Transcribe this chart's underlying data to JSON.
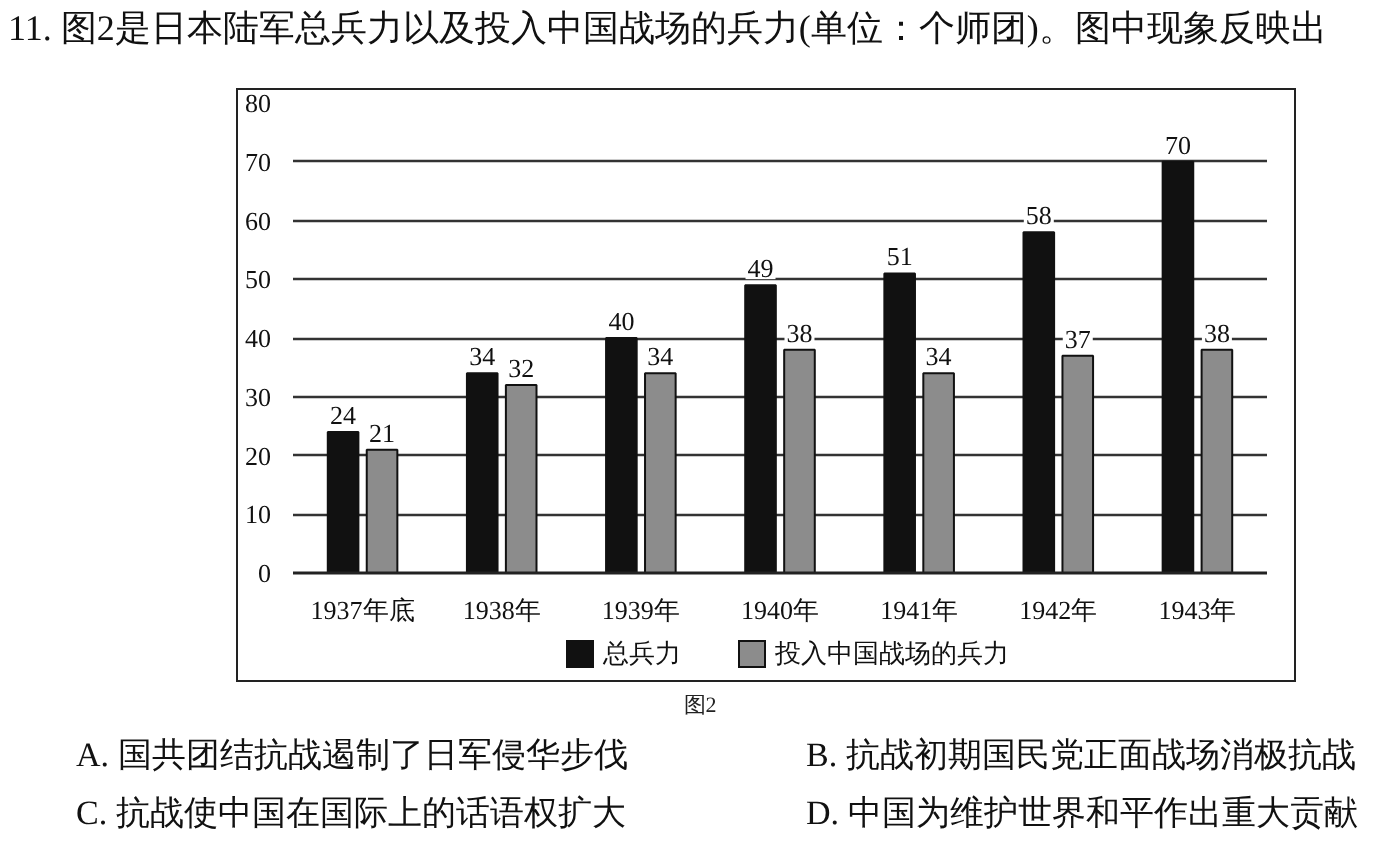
{
  "chart_data": {
    "type": "bar",
    "title": "11. 图2是日本陆军总兵力以及投入中国战场的兵力(单位：个师团)。图中现象反映出",
    "categories": [
      "1937年底",
      "1938年",
      "1939年",
      "1940年",
      "1941年",
      "1942年",
      "1943年"
    ],
    "series": [
      {
        "name": "总兵力",
        "color": "#111111",
        "values": [
          24,
          34,
          40,
          49,
          51,
          58,
          70
        ]
      },
      {
        "name": "投入中国战场的兵力",
        "color": "#8c8c8c",
        "values": [
          21,
          32,
          34,
          38,
          34,
          37,
          38
        ]
      }
    ],
    "ylim": [
      0,
      80
    ],
    "yticks": [
      0,
      10,
      20,
      30,
      40,
      50,
      60,
      70,
      80
    ],
    "grid": "y",
    "legend": "bottom",
    "data_labels": true,
    "annotations": [
      "图2",
      "A. 国共团结抗战遏制了日军侵华步伐",
      "B. 抗战初期国民党正面战场消极抗战",
      "C. 抗战使中国在国际上的话语权扩大",
      "D. 中国为维护世界和平作出重大贡献"
    ]
  }
}
